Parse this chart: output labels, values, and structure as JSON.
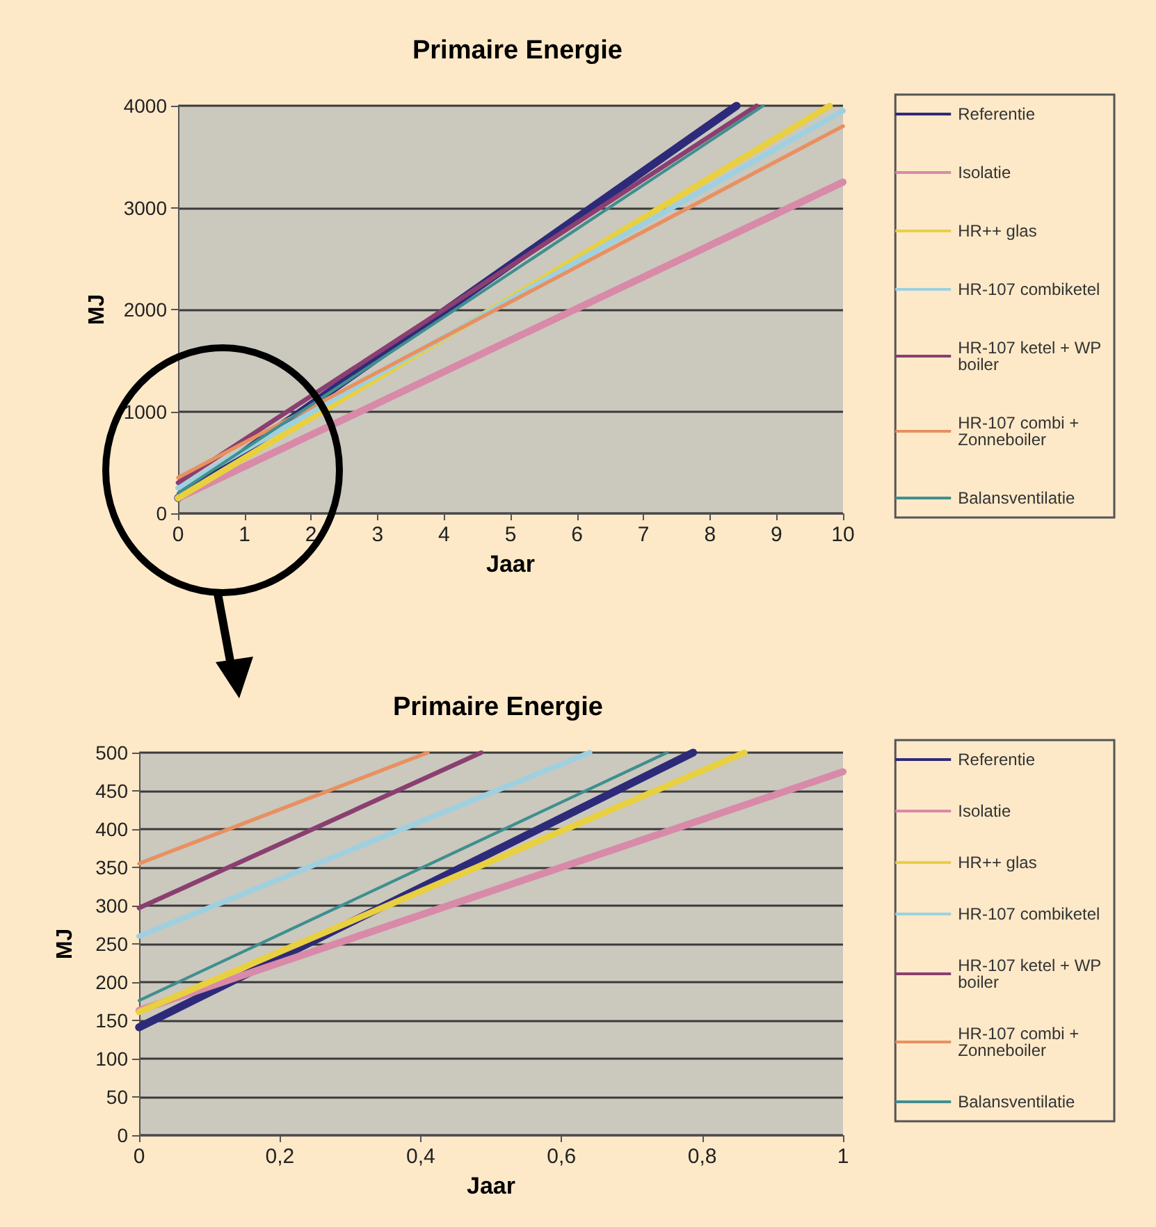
{
  "chart_data": [
    {
      "type": "line",
      "title": "Primaire Energie",
      "xlabel": "Jaar",
      "ylabel": "MJ",
      "xlim": [
        0,
        10
      ],
      "xticks": [
        0,
        1,
        2,
        3,
        4,
        5,
        6,
        7,
        8,
        9,
        10
      ],
      "ylim": [
        0,
        4000
      ],
      "yticks": [
        0,
        1000,
        2000,
        3000,
        4000
      ],
      "grid": "y",
      "legend": "right",
      "marker": "none",
      "line_style": "solid",
      "series": [
        {
          "name": "Referentie",
          "color": "#2e2a7a",
          "x": [
            0,
            8.4
          ],
          "values": [
            150,
            4000
          ]
        },
        {
          "name": "Isolatie",
          "color": "#d88aa8",
          "x": [
            0,
            10
          ],
          "values": [
            150,
            3250
          ]
        },
        {
          "name": "HR++ glas",
          "color": "#e8d040",
          "x": [
            0,
            9.8
          ],
          "values": [
            150,
            4000
          ]
        },
        {
          "name": "HR-107 combiketel",
          "color": "#9fd0e0",
          "x": [
            0,
            10
          ],
          "values": [
            250,
            3950
          ]
        },
        {
          "name": "HR-107 ketel + WP boiler",
          "color": "#8a3f70",
          "x": [
            0,
            8.7
          ],
          "values": [
            300,
            4000
          ]
        },
        {
          "name": "HR-107 combi + Zonneboiler",
          "color": "#e89060",
          "x": [
            0,
            10
          ],
          "values": [
            350,
            3800
          ]
        },
        {
          "name": "Balansventilatie",
          "color": "#3f8f8f",
          "x": [
            0,
            8.8
          ],
          "values": [
            200,
            4000
          ]
        }
      ]
    },
    {
      "type": "line",
      "title": "Primaire Energie",
      "xlabel": "Jaar",
      "ylabel": "MJ",
      "xlim": [
        0,
        1
      ],
      "xticks": [
        0,
        {
          "value": 0.2,
          "label": "0,2"
        },
        {
          "value": 0.4,
          "label": "0,4"
        },
        {
          "value": 0.6,
          "label": "0,6"
        },
        {
          "value": 0.8,
          "label": "0,8"
        },
        1
      ],
      "ylim": [
        0,
        500
      ],
      "yticks": [
        0,
        50,
        100,
        150,
        200,
        250,
        300,
        350,
        400,
        450,
        500
      ],
      "grid": "y",
      "legend": "right",
      "marker": "none",
      "line_style": "solid",
      "series": [
        {
          "name": "Referentie",
          "color": "#2e2a7a",
          "x": [
            0,
            0.787
          ],
          "values": [
            141,
            500
          ]
        },
        {
          "name": "Isolatie",
          "color": "#d88aa8",
          "x": [
            0,
            1
          ],
          "values": [
            163,
            475
          ]
        },
        {
          "name": "HR++ glas",
          "color": "#e8d040",
          "x": [
            0,
            0.86
          ],
          "values": [
            161,
            500
          ]
        },
        {
          "name": "HR-107 combiketel",
          "color": "#9fd0e0",
          "x": [
            0,
            0.64
          ],
          "values": [
            260,
            500
          ]
        },
        {
          "name": "HR-107 ketel + WP boiler",
          "color": "#8a3f70",
          "x": [
            0,
            0.486
          ],
          "values": [
            297,
            500
          ]
        },
        {
          "name": "HR-107 combi + Zonneboiler",
          "color": "#e89060",
          "x": [
            0,
            0.41
          ],
          "values": [
            355,
            500
          ]
        },
        {
          "name": "Balansventilatie",
          "color": "#3f8f8f",
          "x": [
            0,
            0.75
          ],
          "values": [
            176,
            500
          ]
        }
      ]
    }
  ]
}
